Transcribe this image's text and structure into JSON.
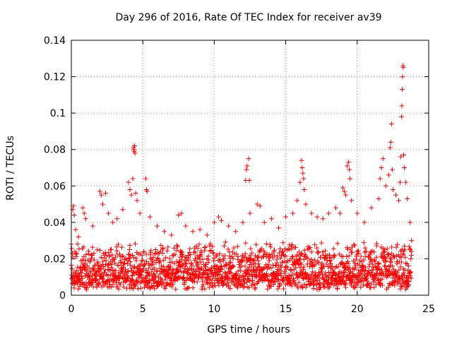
{
  "chart_data": {
    "type": "scatter",
    "title": "Day 296 of 2016, Rate Of TEC Index for receiver av39",
    "xlabel": "GPS time / hours",
    "ylabel": "ROTI / TECUs",
    "xlim": [
      0,
      25
    ],
    "ylim": [
      0,
      0.14
    ],
    "xticks": [
      0,
      5,
      10,
      15,
      20,
      25
    ],
    "xtick_labels": [
      "0",
      "5",
      "10",
      "15",
      "20",
      "25"
    ],
    "yticks": [
      0,
      0.02,
      0.04,
      0.06,
      0.08,
      0.1,
      0.12,
      0.14
    ],
    "ytick_labels": [
      "0",
      "0.02",
      "0.04",
      "0.06",
      "0.08",
      "0.1",
      "0.12",
      "0.14"
    ],
    "grid": true,
    "marker": "+",
    "color": "#ff0000",
    "data_x_range": [
      0,
      23.8
    ],
    "baseline_range": [
      0.003,
      0.03
    ],
    "points": [
      [
        0.0,
        0.028
      ],
      [
        0.1,
        0.047
      ],
      [
        0.15,
        0.049
      ],
      [
        0.2,
        0.044
      ],
      [
        0.3,
        0.036
      ],
      [
        0.5,
        0.032
      ],
      [
        0.8,
        0.048
      ],
      [
        0.9,
        0.045
      ],
      [
        1.0,
        0.042
      ],
      [
        1.5,
        0.038
      ],
      [
        2.0,
        0.057
      ],
      [
        2.1,
        0.055
      ],
      [
        2.2,
        0.05
      ],
      [
        2.4,
        0.056
      ],
      [
        2.6,
        0.045
      ],
      [
        2.9,
        0.04
      ],
      [
        3.2,
        0.042
      ],
      [
        3.6,
        0.047
      ],
      [
        4.0,
        0.062
      ],
      [
        4.1,
        0.058
      ],
      [
        4.2,
        0.055
      ],
      [
        4.3,
        0.064
      ],
      [
        4.35,
        0.081
      ],
      [
        4.37,
        0.08
      ],
      [
        4.4,
        0.079
      ],
      [
        4.42,
        0.082
      ],
      [
        4.45,
        0.078
      ],
      [
        4.5,
        0.056
      ],
      [
        4.6,
        0.052
      ],
      [
        4.8,
        0.045
      ],
      [
        5.2,
        0.064
      ],
      [
        5.25,
        0.058
      ],
      [
        5.3,
        0.057
      ],
      [
        5.5,
        0.043
      ],
      [
        6.0,
        0.038
      ],
      [
        6.5,
        0.035
      ],
      [
        7.0,
        0.033
      ],
      [
        7.5,
        0.044
      ],
      [
        7.7,
        0.045
      ],
      [
        8.0,
        0.038
      ],
      [
        8.5,
        0.035
      ],
      [
        9.0,
        0.036
      ],
      [
        9.5,
        0.033
      ],
      [
        10.0,
        0.04
      ],
      [
        10.3,
        0.043
      ],
      [
        10.5,
        0.041
      ],
      [
        11.0,
        0.038
      ],
      [
        11.5,
        0.035
      ],
      [
        12.0,
        0.04
      ],
      [
        12.2,
        0.063
      ],
      [
        12.25,
        0.069
      ],
      [
        12.3,
        0.071
      ],
      [
        12.4,
        0.075
      ],
      [
        12.45,
        0.063
      ],
      [
        12.5,
        0.045
      ],
      [
        13.0,
        0.05
      ],
      [
        13.2,
        0.049
      ],
      [
        13.5,
        0.04
      ],
      [
        14.0,
        0.042
      ],
      [
        14.5,
        0.037
      ],
      [
        15.0,
        0.043
      ],
      [
        15.5,
        0.045
      ],
      [
        15.8,
        0.052
      ],
      [
        16.0,
        0.062
      ],
      [
        16.1,
        0.074
      ],
      [
        16.15,
        0.07
      ],
      [
        16.2,
        0.067
      ],
      [
        16.25,
        0.064
      ],
      [
        16.3,
        0.058
      ],
      [
        16.4,
        0.05
      ],
      [
        16.8,
        0.045
      ],
      [
        17.2,
        0.043
      ],
      [
        17.6,
        0.042
      ],
      [
        18.0,
        0.045
      ],
      [
        18.5,
        0.048
      ],
      [
        18.8,
        0.045
      ],
      [
        19.0,
        0.059
      ],
      [
        19.1,
        0.057
      ],
      [
        19.2,
        0.055
      ],
      [
        19.3,
        0.071
      ],
      [
        19.4,
        0.073
      ],
      [
        19.45,
        0.069
      ],
      [
        19.5,
        0.064
      ],
      [
        19.6,
        0.052
      ],
      [
        20.0,
        0.045
      ],
      [
        20.5,
        0.04
      ],
      [
        21.0,
        0.048
      ],
      [
        21.5,
        0.053
      ],
      [
        21.6,
        0.064
      ],
      [
        21.7,
        0.07
      ],
      [
        21.8,
        0.075
      ],
      [
        22.0,
        0.06
      ],
      [
        22.2,
        0.066
      ],
      [
        22.3,
        0.081
      ],
      [
        22.35,
        0.084
      ],
      [
        22.4,
        0.094
      ],
      [
        22.45,
        0.069
      ],
      [
        22.5,
        0.058
      ],
      [
        22.7,
        0.055
      ],
      [
        22.9,
        0.052
      ],
      [
        23.0,
        0.062
      ],
      [
        23.05,
        0.076
      ],
      [
        23.1,
        0.098
      ],
      [
        23.12,
        0.104
      ],
      [
        23.15,
        0.113
      ],
      [
        23.17,
        0.12
      ],
      [
        23.2,
        0.126
      ],
      [
        23.22,
        0.125
      ],
      [
        23.25,
        0.077
      ],
      [
        23.3,
        0.07
      ],
      [
        23.4,
        0.062
      ],
      [
        23.5,
        0.053
      ],
      [
        23.7,
        0.04
      ],
      [
        23.8,
        0.03
      ]
    ]
  }
}
